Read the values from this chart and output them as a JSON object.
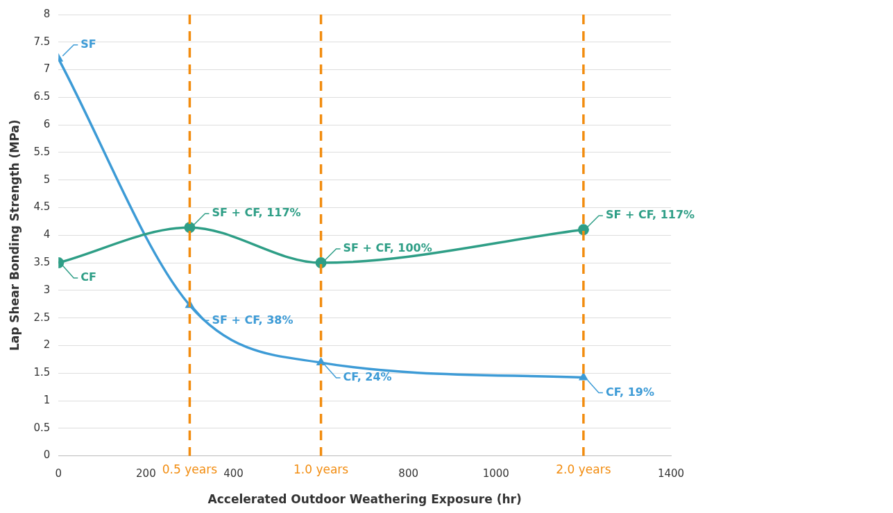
{
  "chart_data": {
    "type": "line",
    "xlabel": "Accelerated Outdoor Weathering Exposure (hr)",
    "ylabel": "Lap Shear Bonding Strength (MPa)",
    "x": [
      0,
      300,
      600,
      1200
    ],
    "series": [
      {
        "color": "#2e9e86",
        "marker": "circle",
        "values": [
          3.5,
          4.14,
          3.5,
          4.1
        ]
      },
      {
        "color": "#3d9bd6",
        "marker": "triangle",
        "values": [
          7.2,
          2.73,
          1.69,
          1.42
        ]
      }
    ],
    "xlim": [
      0,
      1400
    ],
    "xticks": [
      0,
      200,
      400,
      {
        "value": 600,
        "label": null
      },
      800,
      1000,
      {
        "value": 1200,
        "label": null
      },
      1400
    ],
    "ylim": [
      0,
      8
    ],
    "yticks": [
      0,
      0.5,
      1,
      1.5,
      2,
      2.5,
      3,
      3.5,
      4,
      4.5,
      5,
      5.5,
      6,
      6.5,
      7,
      7.5,
      8
    ],
    "grid": "y",
    "legend": false,
    "ref_lines": [
      {
        "axis": "x",
        "value": 300,
        "label": "0.5 years",
        "color": "#f28c0f",
        "line_style": "dashed"
      },
      {
        "axis": "x",
        "value": 600,
        "label": "1.0 years",
        "color": "#f28c0f",
        "line_style": "dashed"
      },
      {
        "axis": "x",
        "value": 1200,
        "label": "2.0 years",
        "color": "#f28c0f",
        "line_style": "dashed"
      }
    ],
    "annotations": [
      {
        "text": "SF",
        "x": 0,
        "y": 7.2
      },
      {
        "text": "CF",
        "x": 0,
        "y": 3.5
      },
      {
        "text": "SF + CF, 117%",
        "x": 300,
        "y": 4.14
      },
      {
        "text": "SF + CF, 38%",
        "x": 300,
        "y": 2.73
      },
      {
        "text": "SF + CF, 100%",
        "x": 600,
        "y": 3.5
      },
      {
        "text": "CF, 24%",
        "x": 600,
        "y": 1.69
      },
      {
        "text": "SF + CF, 117%",
        "x": 1200,
        "y": 4.1
      },
      {
        "text": "CF, 19%",
        "x": 1200,
        "y": 1.42
      }
    ]
  }
}
